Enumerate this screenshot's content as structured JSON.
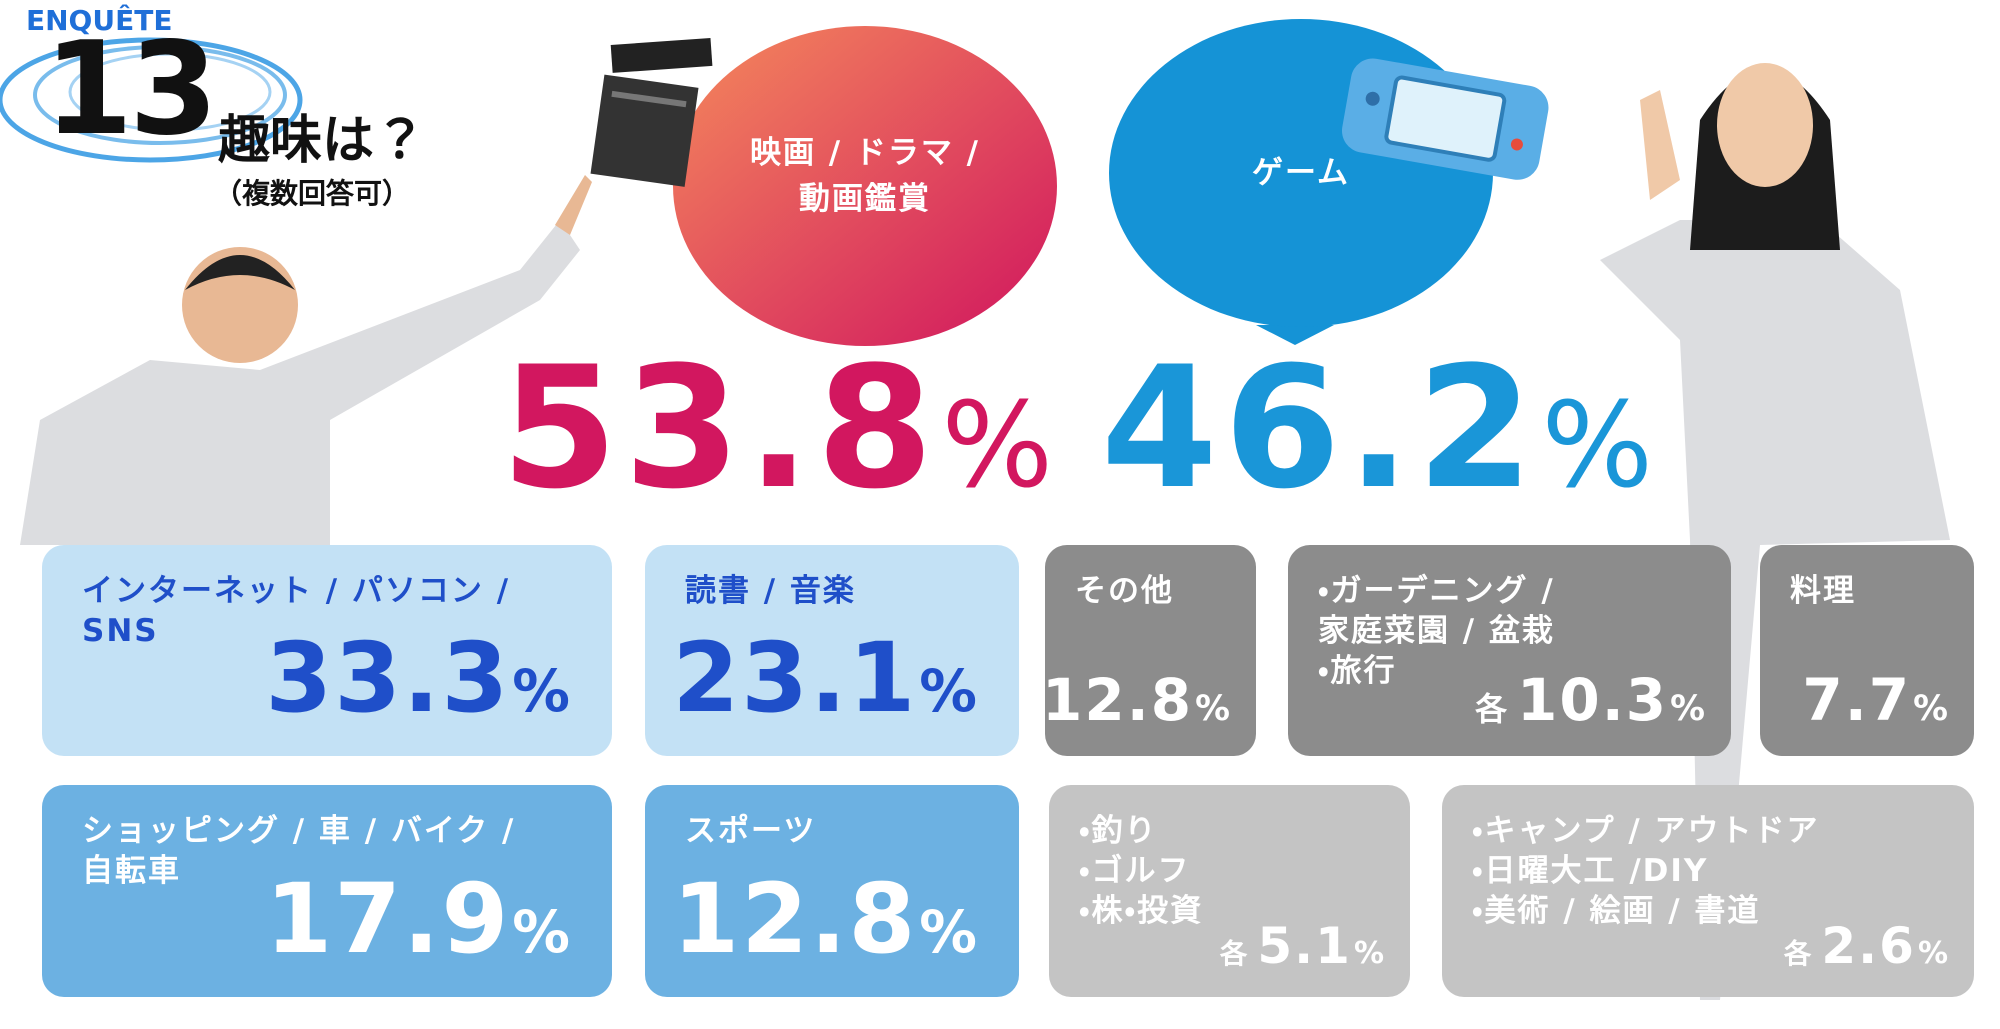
{
  "header": {
    "label": "ENQUÊTE",
    "number": "13",
    "title": "趣味は？",
    "note": "（複数回答可）"
  },
  "main": [
    {
      "lines": [
        "映画 / ドラマ /",
        "動画鑑賞"
      ],
      "value": 53.8,
      "unit": "%"
    },
    {
      "lines": [
        "ゲーム"
      ],
      "value": 46.2,
      "unit": "%"
    }
  ],
  "items": [
    {
      "lines": [
        "インターネット / パソコン /",
        "SNS"
      ],
      "value": 33.3,
      "unit": "%"
    },
    {
      "lines": [
        "読書 / 音楽"
      ],
      "value": 23.1,
      "unit": "%"
    },
    {
      "lines": [
        "その他"
      ],
      "value": 12.8,
      "unit": "%"
    },
    {
      "lines": [
        "・ガーデニング /",
        "家庭菜園 / 盆栽",
        "・旅行"
      ],
      "prefix": "各",
      "value": 10.3,
      "unit": "%"
    },
    {
      "lines": [
        "料理"
      ],
      "value": 7.7,
      "unit": "%"
    },
    {
      "lines": [
        "ショッピング / 車 / バイク /",
        "自転車"
      ],
      "value": 17.9,
      "unit": "%"
    },
    {
      "lines": [
        "スポーツ"
      ],
      "value": 12.8,
      "unit": "%"
    },
    {
      "lines": [
        "・釣り",
        "・ゴルフ",
        "・株・投資"
      ],
      "prefix": "各",
      "value": 5.1,
      "unit": "%"
    },
    {
      "lines": [
        "・キャンプ / アウトドア",
        "・日曜大工 /DIY",
        "・美術 / 絵画 / 書道"
      ],
      "prefix": "各",
      "value": 2.6,
      "unit": "%"
    }
  ]
}
